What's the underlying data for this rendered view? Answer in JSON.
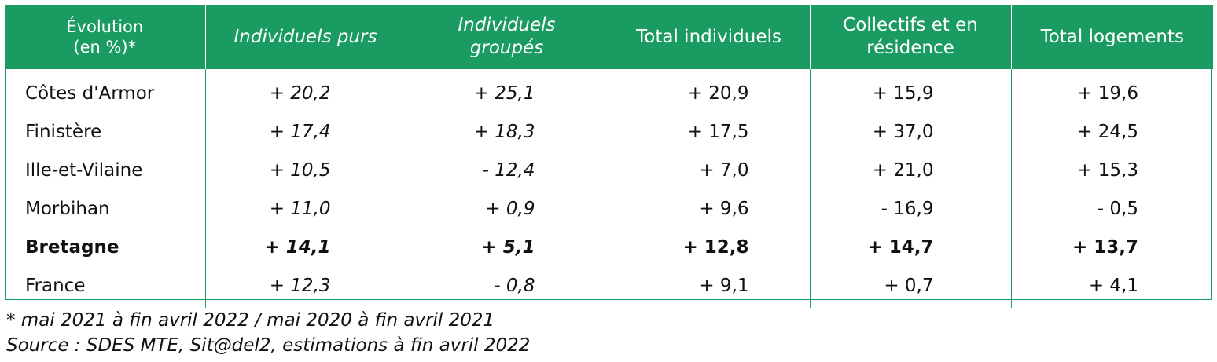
{
  "table": {
    "headers": [
      {
        "line1": "Évolution",
        "line2": "(en %)*",
        "italic": false
      },
      {
        "line1": "Individuels purs",
        "line2": "",
        "italic": true
      },
      {
        "line1": "Individuels",
        "line2": "groupés",
        "italic": true
      },
      {
        "line1": "Total individuels",
        "line2": "",
        "italic": false
      },
      {
        "line1": "Collectifs et en",
        "line2": "résidence",
        "italic": false
      },
      {
        "line1": "Total logements",
        "line2": "",
        "italic": false
      }
    ],
    "rows": [
      {
        "label": "Côtes d'Armor",
        "bold": false,
        "values": [
          "+ 20,2",
          "+ 25,1",
          "+ 20,9",
          "+ 15,9",
          "+ 19,6"
        ]
      },
      {
        "label": "Finistère",
        "bold": false,
        "values": [
          "+ 17,4",
          "+ 18,3",
          "+ 17,5",
          "+ 37,0",
          "+ 24,5"
        ]
      },
      {
        "label": "Ille-et-Vilaine",
        "bold": false,
        "values": [
          "+ 10,5",
          "- 12,4",
          "+ 7,0",
          "+ 21,0",
          "+ 15,3"
        ]
      },
      {
        "label": "Morbihan",
        "bold": false,
        "values": [
          "+ 11,0",
          "+ 0,9",
          "+ 9,6",
          "- 16,9",
          "- 0,5"
        ]
      },
      {
        "label": "Bretagne",
        "bold": true,
        "values": [
          "+ 14,1",
          "+ 5,1",
          "+ 12,8",
          "+ 14,7",
          "+ 13,7"
        ]
      },
      {
        "label": "France",
        "bold": false,
        "values": [
          "+ 12,3",
          "- 0,8",
          "+ 9,1",
          "+ 0,7",
          "+ 4,1"
        ]
      }
    ]
  },
  "footnotes": {
    "period": "* mai 2021 à fin avril 2022 / mai 2020 à fin avril 2021",
    "source": "Source : SDES MTE, Sit@del2, estimations à fin avril 2022"
  },
  "colors": {
    "header_background": "#1a9b62",
    "header_text": "#ffffff",
    "grid_lines": "#1a9b62"
  }
}
